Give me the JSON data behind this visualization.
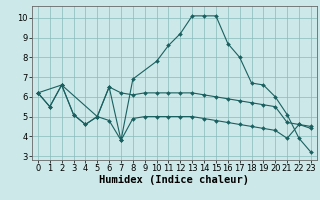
{
  "title": "",
  "xlabel": "Humidex (Indice chaleur)",
  "bg_color": "#cce8e8",
  "grid_color": "#88bbbb",
  "line_color": "#1a6060",
  "xlim": [
    -0.5,
    23.5
  ],
  "ylim": [
    2.8,
    10.6
  ],
  "yticks": [
    3,
    4,
    5,
    6,
    7,
    8,
    9,
    10
  ],
  "xticks": [
    0,
    1,
    2,
    3,
    4,
    5,
    6,
    7,
    8,
    9,
    10,
    11,
    12,
    13,
    14,
    15,
    16,
    17,
    18,
    19,
    20,
    21,
    22,
    23
  ],
  "line1_x": [
    0,
    1,
    2,
    3,
    4,
    5,
    6,
    7,
    8,
    9,
    10,
    11,
    12,
    13,
    14,
    15,
    16,
    17,
    18,
    19,
    20,
    21,
    22,
    23
  ],
  "line1_y": [
    6.2,
    5.5,
    6.6,
    5.1,
    4.6,
    5.0,
    6.5,
    6.2,
    6.1,
    6.2,
    6.2,
    6.2,
    6.2,
    6.2,
    6.1,
    6.0,
    5.9,
    5.8,
    5.7,
    5.6,
    5.5,
    4.7,
    4.6,
    4.5
  ],
  "line2_x": [
    0,
    2,
    5,
    6,
    7,
    8,
    10,
    11,
    12,
    13,
    14,
    15,
    16,
    17,
    18,
    19,
    20,
    21,
    22,
    23
  ],
  "line2_y": [
    6.2,
    6.6,
    5.0,
    6.5,
    3.8,
    6.9,
    7.8,
    8.6,
    9.2,
    10.1,
    10.1,
    10.1,
    8.7,
    8.0,
    6.7,
    6.6,
    6.0,
    5.1,
    3.9,
    3.2
  ],
  "line3_x": [
    0,
    1,
    2,
    3,
    4,
    5,
    6,
    7,
    8,
    9,
    10,
    11,
    12,
    13,
    14,
    15,
    16,
    17,
    18,
    19,
    20,
    21,
    22,
    23
  ],
  "line3_y": [
    6.2,
    5.5,
    6.6,
    5.1,
    4.6,
    5.0,
    4.8,
    3.8,
    4.9,
    5.0,
    5.0,
    5.0,
    5.0,
    5.0,
    4.9,
    4.8,
    4.7,
    4.6,
    4.5,
    4.4,
    4.3,
    3.9,
    4.6,
    4.4
  ],
  "tick_fontsize": 6,
  "label_fontsize": 7.5
}
